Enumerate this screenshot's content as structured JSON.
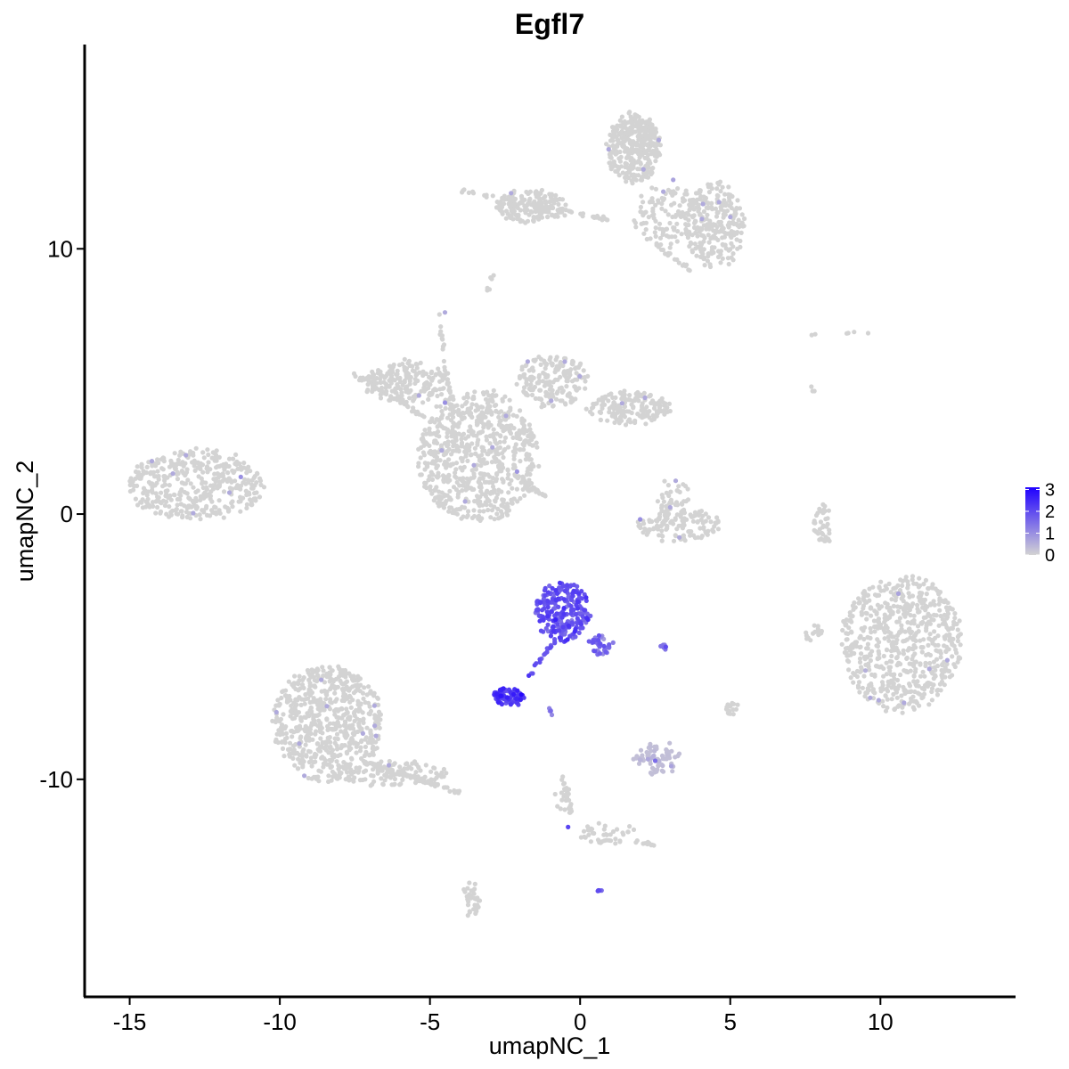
{
  "chart_data": {
    "type": "scatter",
    "title": "Egfl7",
    "xlabel": "umapNC_1",
    "ylabel": "umapNC_2",
    "xlim": [
      -16.5,
      14.5
    ],
    "ylim": [
      -18.2,
      17.7
    ],
    "xticks": [
      -15,
      -10,
      -5,
      0,
      5,
      10
    ],
    "xtick_labels": [
      "-15",
      "-10",
      "-5",
      "0",
      "5",
      "10"
    ],
    "yticks": [
      -10,
      0,
      10
    ],
    "ytick_labels": [
      "-10",
      "0",
      "10"
    ],
    "grid": false,
    "legend": {
      "placement": "right",
      "type": "colorbar",
      "labels": [
        "3",
        "2",
        "1",
        "0"
      ],
      "values": [
        3,
        2,
        1,
        0
      ],
      "low_color": "#d3d3d3",
      "high_color": "#1f00ff"
    },
    "color_scale": {
      "min": 0,
      "max": 3.1,
      "low": "#d3d3d3",
      "high": "#1f00ff"
    },
    "clusters": [
      {
        "cx": -12.8,
        "cy": 1.1,
        "rx": 2.3,
        "ry": 1.3,
        "n": 420,
        "expr": 0
      },
      {
        "cx": -8.4,
        "cy": -7.9,
        "rx": 1.8,
        "ry": 2.2,
        "n": 650,
        "expr": 0
      },
      {
        "cx": -6.2,
        "cy": -9.8,
        "rx": 1.8,
        "ry": 0.5,
        "n": 110,
        "expr": 0
      },
      {
        "cx": -3.4,
        "cy": 2.2,
        "rx": 2.0,
        "ry": 2.5,
        "n": 700,
        "expr": 0
      },
      {
        "cx": -5.8,
        "cy": 5.0,
        "rx": 1.4,
        "ry": 0.8,
        "n": 200,
        "expr": 0
      },
      {
        "cx": -0.9,
        "cy": 5.0,
        "rx": 1.2,
        "ry": 1.0,
        "n": 180,
        "expr": 0
      },
      {
        "cx": 1.6,
        "cy": 4.0,
        "rx": 1.4,
        "ry": 0.6,
        "n": 170,
        "expr": 0
      },
      {
        "cx": 1.8,
        "cy": 13.8,
        "rx": 0.9,
        "ry": 1.3,
        "n": 350,
        "expr": 0
      },
      {
        "cx": -1.6,
        "cy": 11.6,
        "rx": 1.2,
        "ry": 0.6,
        "n": 170,
        "expr": 0
      },
      {
        "cx": 4.5,
        "cy": 10.9,
        "rx": 1.0,
        "ry": 1.6,
        "n": 250,
        "expr": 0
      },
      {
        "cx": 2.9,
        "cy": 11.2,
        "rx": 1.1,
        "ry": 1.2,
        "n": 120,
        "expr": 0
      },
      {
        "cx": 10.7,
        "cy": -4.9,
        "rx": 2.0,
        "ry": 2.6,
        "n": 650,
        "expr": 0
      },
      {
        "cx": 3.3,
        "cy": -0.4,
        "rx": 1.4,
        "ry": 0.6,
        "n": 130,
        "expr": 0
      },
      {
        "cx": 3.1,
        "cy": 0.5,
        "rx": 0.6,
        "ry": 0.8,
        "n": 40,
        "expr": 0
      },
      {
        "cx": 2.6,
        "cy": -9.2,
        "rx": 0.8,
        "ry": 0.6,
        "n": 70,
        "expr": 0.1
      },
      {
        "cx": -3.6,
        "cy": -14.5,
        "rx": 0.3,
        "ry": 0.6,
        "n": 35,
        "expr": 0
      },
      {
        "cx": 0.9,
        "cy": -12.0,
        "rx": 1.0,
        "ry": 0.4,
        "n": 40,
        "expr": 0
      },
      {
        "cx": -0.5,
        "cy": -10.8,
        "rx": 0.3,
        "ry": 0.5,
        "n": 18,
        "expr": 0
      },
      {
        "cx": 8.1,
        "cy": -0.4,
        "rx": 0.3,
        "ry": 0.8,
        "n": 40,
        "expr": 0
      },
      {
        "cx": 7.8,
        "cy": -4.5,
        "rx": 0.3,
        "ry": 0.3,
        "n": 18,
        "expr": 0
      },
      {
        "cx": 5.0,
        "cy": -7.3,
        "rx": 0.2,
        "ry": 0.3,
        "n": 15,
        "expr": 0
      },
      {
        "cx": -0.6,
        "cy": -3.7,
        "rx": 0.9,
        "ry": 1.1,
        "n": 230,
        "expr": 1.9
      },
      {
        "cx": 0.7,
        "cy": -4.9,
        "rx": 0.4,
        "ry": 0.4,
        "n": 40,
        "expr": 1.5
      },
      {
        "cx": -2.4,
        "cy": -6.9,
        "rx": 0.5,
        "ry": 0.3,
        "n": 80,
        "expr": 2.2
      },
      {
        "cx": 2.8,
        "cy": -5.0,
        "rx": 0.2,
        "ry": 0.1,
        "n": 8,
        "expr": 1.6
      },
      {
        "cx": 0.6,
        "cy": -14.2,
        "rx": 0.1,
        "ry": 0.1,
        "n": 5,
        "expr": 2.0
      }
    ],
    "strands": [
      {
        "from": [
          -4.7,
          7.5
        ],
        "to": [
          -4.1,
          2.4
        ],
        "n": 45,
        "expr": 0
      },
      {
        "from": [
          -7.6,
          5.3
        ],
        "to": [
          -4.2,
          3.0
        ],
        "n": 50,
        "expr": 0
      },
      {
        "from": [
          -2.2,
          1.5
        ],
        "to": [
          -1.2,
          0.7
        ],
        "n": 30,
        "expr": 0
      },
      {
        "from": [
          -7.3,
          -9.3
        ],
        "to": [
          -4.0,
          -10.5
        ],
        "n": 60,
        "expr": 0
      },
      {
        "from": [
          -3.9,
          12.2
        ],
        "to": [
          0.9,
          11.1
        ],
        "n": 45,
        "expr": 0
      },
      {
        "from": [
          2.6,
          10.1
        ],
        "to": [
          3.7,
          9.2
        ],
        "n": 15,
        "expr": 0
      },
      {
        "from": [
          -2.9,
          9.1
        ],
        "to": [
          -3.1,
          8.4
        ],
        "n": 6,
        "expr": 0
      },
      {
        "from": [
          -0.6,
          -9.9
        ],
        "to": [
          -0.3,
          -11.2
        ],
        "n": 15,
        "expr": 0
      },
      {
        "from": [
          1.8,
          -12.3
        ],
        "to": [
          2.5,
          -12.5
        ],
        "n": 10,
        "expr": 0
      },
      {
        "from": [
          -1.7,
          -6.1
        ],
        "to": [
          -0.5,
          -4.2
        ],
        "n": 22,
        "expr": 1.9
      },
      {
        "from": [
          -1.1,
          -7.2
        ],
        "to": [
          -0.8,
          -7.7
        ],
        "n": 5,
        "expr": 1.3
      },
      {
        "from": [
          7.0,
          6.8
        ],
        "to": [
          9.8,
          6.8
        ],
        "n": 6,
        "expr": 0
      },
      {
        "from": [
          7.6,
          4.9
        ],
        "to": [
          7.8,
          4.6
        ],
        "n": 3,
        "expr": 0
      }
    ],
    "points": [
      {
        "x": -0.4,
        "y": -11.8,
        "v": 2.1
      },
      {
        "x": -4.5,
        "y": 4.2,
        "v": 1.0
      },
      {
        "x": -11.3,
        "y": 1.4,
        "v": 1.0
      },
      {
        "x": -2.1,
        "y": 1.6,
        "v": 0.9
      },
      {
        "x": 2.0,
        "y": -0.2,
        "v": 1.0
      },
      {
        "x": 2.5,
        "y": -9.3,
        "v": 1.5
      },
      {
        "x": 10.6,
        "y": -3.0,
        "v": 0.7
      },
      {
        "x": 9.5,
        "y": -5.9,
        "v": 0.5
      },
      {
        "x": 3.1,
        "y": 12.6,
        "v": 0.7
      },
      {
        "x": 5.0,
        "y": 11.2,
        "v": 0.6
      },
      {
        "x": -4.5,
        "y": 7.6,
        "v": 0.6
      },
      {
        "x": -2.3,
        "y": 12.1,
        "v": 0.6
      }
    ]
  }
}
